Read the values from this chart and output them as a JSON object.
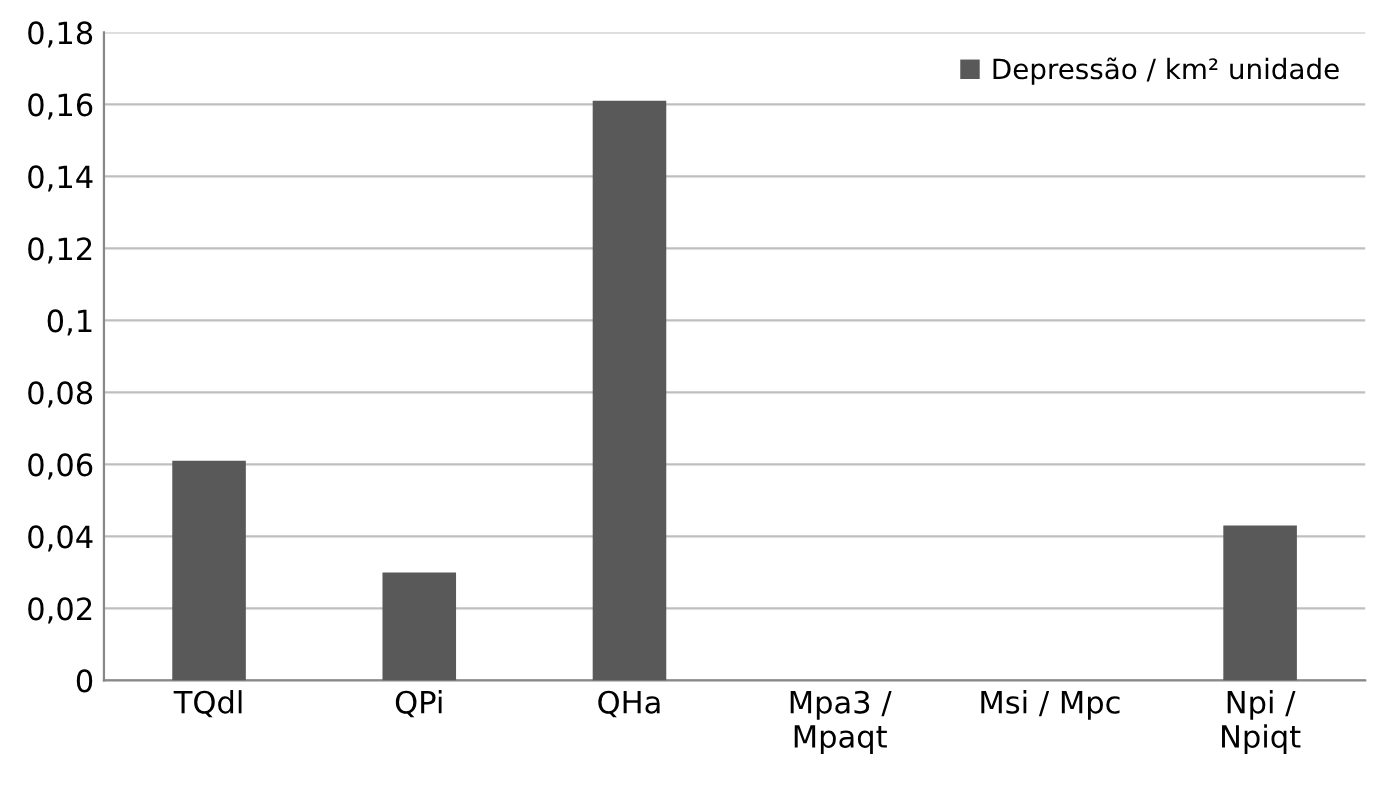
{
  "chart_data": {
    "type": "bar",
    "categories": [
      "TQdl",
      "QPi",
      "QHa",
      "Mpa3 /\nMpaqt",
      "Msi / Mpc",
      "Npi /\nNpiqt"
    ],
    "series": [
      {
        "name": "Depressão / km² unidade",
        "color": "#595959",
        "values": [
          0.061,
          0.03,
          0.161,
          0,
          0,
          0.043
        ]
      }
    ],
    "ylim": [
      0,
      0.18
    ],
    "yticks": [
      0,
      {
        "value": 0.02,
        "label": "0,02"
      },
      {
        "value": 0.04,
        "label": "0,04"
      },
      {
        "value": 0.06,
        "label": "0,06"
      },
      {
        "value": 0.08,
        "label": "0,08"
      },
      {
        "value": 0.1,
        "label": "0,1"
      },
      {
        "value": 0.12,
        "label": "0,12"
      },
      {
        "value": 0.14,
        "label": "0,14"
      },
      {
        "value": 0.16,
        "label": "0,16"
      },
      {
        "value": 0.18,
        "label": "0,18"
      }
    ],
    "grid": "y",
    "legend": "top right"
  }
}
